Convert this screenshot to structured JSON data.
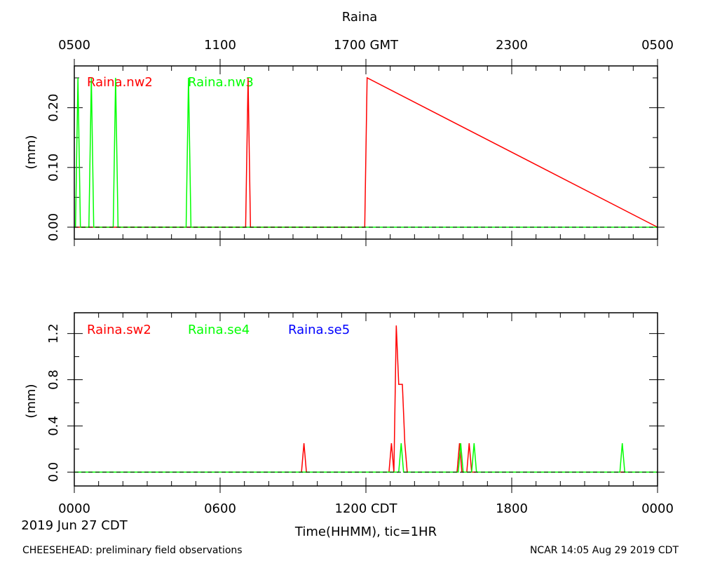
{
  "header": {
    "title": "Raina",
    "gmt_ticks": [
      "0500",
      "1100",
      "1700 GMT",
      "2300",
      "0500"
    ]
  },
  "footer": {
    "bottom_ticks": [
      "0000",
      "0600",
      "1200 CDT",
      "1800",
      "0000"
    ],
    "date_label": "2019 Jun 27 CDT",
    "xlabel": "Time(HHMM), tic=1HR",
    "left_note": "CHEESEHEAD: preliminary field observations",
    "right_note": "NCAR 14:05 Aug 29 2019 CDT"
  },
  "colors": {
    "red": "#ff0000",
    "green": "#00ff00",
    "blue": "#0000ff",
    "dash": "#000000"
  },
  "chart_data": [
    {
      "type": "line",
      "title": "Raina",
      "ylabel": "(mm)",
      "ylim": [
        -0.02,
        0.27
      ],
      "yticks": [
        0.0,
        0.1,
        0.2
      ],
      "ytick_labels": [
        "0.00",
        "0.10",
        "0.20"
      ],
      "xlim": [
        0,
        24
      ],
      "x_unit": "hours CDT",
      "series": [
        {
          "name": "Raina.nw2",
          "color": "#ff0000",
          "x": [
            0,
            7.05,
            7.15,
            7.25,
            11.75,
            11.95,
            12.05,
            24
          ],
          "y": [
            0,
            0,
            0.25,
            0,
            0,
            0,
            0.25,
            0
          ]
        },
        {
          "name": "Raina.nw3",
          "color": "#00ff00",
          "x": [
            0,
            0.05,
            0.15,
            0.25,
            0.6,
            0.7,
            0.8,
            1.6,
            1.7,
            1.8,
            4.6,
            4.7,
            4.8,
            24
          ],
          "y": [
            0,
            0,
            0.25,
            0,
            0,
            0.25,
            0,
            0,
            0.25,
            0,
            0,
            0.25,
            0,
            0
          ]
        }
      ]
    },
    {
      "type": "line",
      "ylabel": "(mm)",
      "ylim": [
        -0.12,
        1.38
      ],
      "yticks": [
        0.0,
        0.4,
        0.8,
        1.2
      ],
      "ytick_labels": [
        "0.0",
        "0.4",
        "0.8",
        "1.2"
      ],
      "xlim": [
        0,
        24
      ],
      "x_unit": "hours CDT",
      "series": [
        {
          "name": "Raina.sw2",
          "color": "#ff0000",
          "x": [
            0,
            9.35,
            9.45,
            9.55,
            12.95,
            13.05,
            13.15,
            13.25,
            13.35,
            13.5,
            13.6,
            13.7,
            15.75,
            15.85,
            15.95,
            16.15,
            16.25,
            16.35,
            24
          ],
          "y": [
            0,
            0,
            0.25,
            0,
            0,
            0.25,
            0,
            1.27,
            0.76,
            0.76,
            0.25,
            0,
            0,
            0.25,
            0,
            0,
            0.25,
            0,
            0
          ]
        },
        {
          "name": "Raina.se4",
          "color": "#00ff00",
          "x": [
            0,
            13.35,
            13.45,
            13.55,
            15.8,
            15.9,
            16.0,
            16.35,
            16.45,
            16.55,
            22.45,
            22.55,
            22.65,
            24
          ],
          "y": [
            0,
            0,
            0.25,
            0,
            0,
            0.25,
            0,
            0,
            0.25,
            0,
            0,
            0.25,
            0,
            0
          ]
        },
        {
          "name": "Raina.se5",
          "color": "#0000ff",
          "x": [],
          "y": []
        }
      ]
    }
  ]
}
